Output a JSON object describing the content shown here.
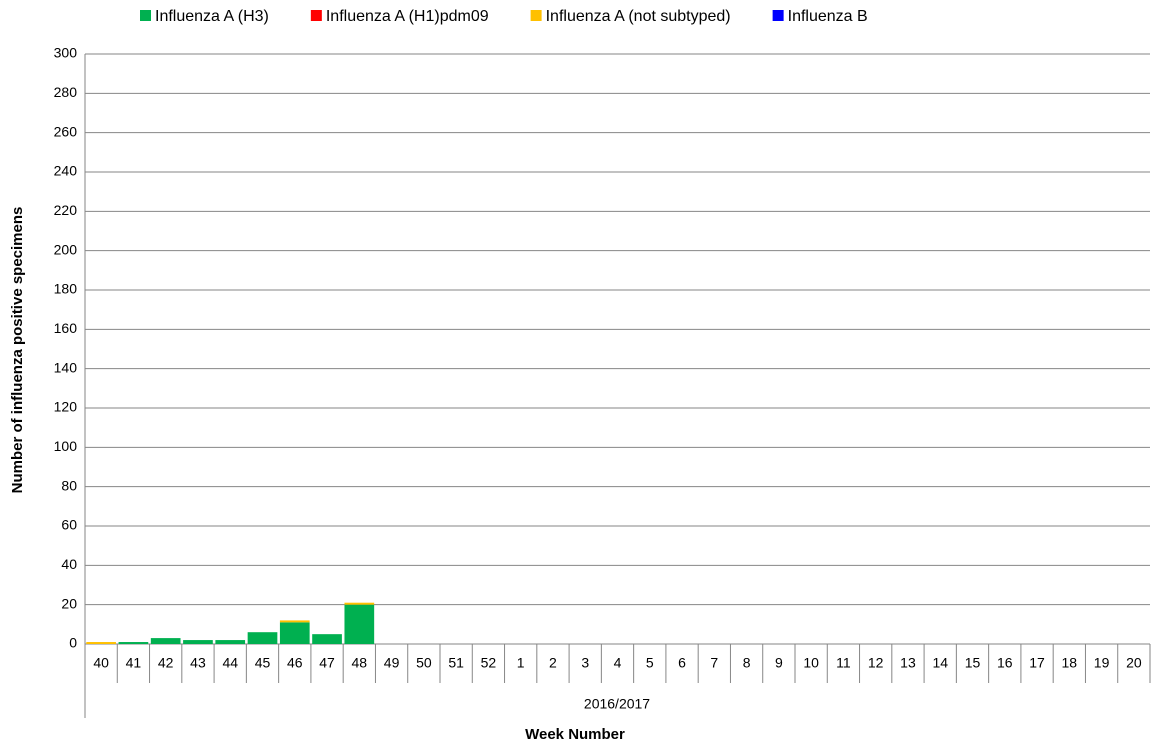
{
  "chart_data": {
    "type": "bar",
    "stacked": true,
    "y_axis_label": "Number of influenza positive specimens",
    "x_axis_label": "Week Number",
    "group_label": "2016/2017",
    "categories": [
      "40",
      "41",
      "42",
      "43",
      "44",
      "45",
      "46",
      "47",
      "48",
      "49",
      "50",
      "51",
      "52",
      "1",
      "2",
      "3",
      "4",
      "5",
      "6",
      "7",
      "8",
      "9",
      "10",
      "11",
      "12",
      "13",
      "14",
      "15",
      "16",
      "17",
      "18",
      "19",
      "20"
    ],
    "series": [
      {
        "name": "Influenza A (H3)",
        "color": "#00b050",
        "values": [
          0,
          1,
          3,
          2,
          2,
          6,
          11,
          5,
          20,
          0,
          0,
          0,
          0,
          0,
          0,
          0,
          0,
          0,
          0,
          0,
          0,
          0,
          0,
          0,
          0,
          0,
          0,
          0,
          0,
          0,
          0,
          0,
          0
        ]
      },
      {
        "name": "Influenza A (H1)pdm09",
        "color": "#ff0000",
        "values": [
          0,
          0,
          0,
          0,
          0,
          0,
          0,
          0,
          0,
          0,
          0,
          0,
          0,
          0,
          0,
          0,
          0,
          0,
          0,
          0,
          0,
          0,
          0,
          0,
          0,
          0,
          0,
          0,
          0,
          0,
          0,
          0,
          0
        ]
      },
      {
        "name": "Influenza A (not subtyped)",
        "color": "#ffc000",
        "values": [
          1,
          0,
          0,
          0,
          0,
          0,
          1,
          0,
          1,
          0,
          0,
          0,
          0,
          0,
          0,
          0,
          0,
          0,
          0,
          0,
          0,
          0,
          0,
          0,
          0,
          0,
          0,
          0,
          0,
          0,
          0,
          0,
          0
        ]
      },
      {
        "name": "Influenza B",
        "color": "#0000ff",
        "values": [
          0,
          0,
          0,
          0,
          0,
          0,
          0,
          0,
          0,
          0,
          0,
          0,
          0,
          0,
          0,
          0,
          0,
          0,
          0,
          0,
          0,
          0,
          0,
          0,
          0,
          0,
          0,
          0,
          0,
          0,
          0,
          0,
          0
        ]
      }
    ],
    "ylim": [
      0,
      300
    ],
    "yticks": [
      0,
      20,
      40,
      60,
      80,
      100,
      120,
      140,
      160,
      180,
      200,
      220,
      240,
      260,
      280,
      300
    ],
    "grid": true,
    "legend": "top"
  }
}
